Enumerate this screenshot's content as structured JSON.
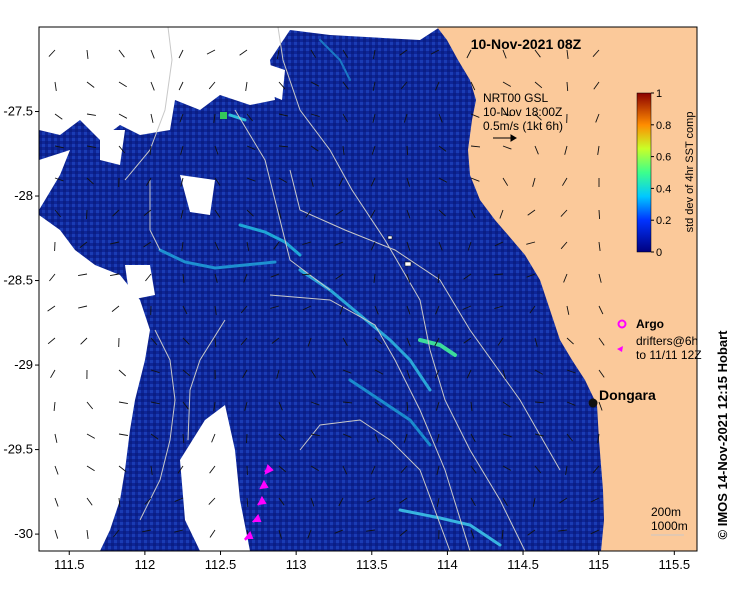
{
  "map": {
    "title": "10-Nov-2021 08Z",
    "model_label_lines": [
      "NRT00 GSL",
      "10-Nov 18:00Z",
      "0.5m/s (1kt 6h)"
    ],
    "colorbar": {
      "label": "std dev of 4hr SST comp",
      "ticks": [
        "0",
        "0.2",
        "0.4",
        "0.6",
        "0.8",
        "1"
      ],
      "range": [
        0,
        1
      ]
    },
    "legend": {
      "argo_label": "Argo",
      "drifters_line1": "drifters@6h",
      "drifters_line2": "to 11/11 12Z"
    },
    "place": {
      "name": "Dongara",
      "lon": 114.93,
      "lat": -29.26
    },
    "depth_labels": [
      "200m",
      "1000m"
    ],
    "credit": "© IMOS 14-Nov-2021 12:15 Hobart",
    "lon_ticks": [
      "111.5",
      "112",
      "112.5",
      "113",
      "113.5",
      "114",
      "114.5",
      "115",
      "115.5"
    ],
    "lat_ticks": [
      "-27.5",
      "-28",
      "-28.5",
      "-29",
      "-29.5",
      "-30"
    ],
    "lon_range": [
      111.3,
      115.65
    ],
    "lat_range": [
      -30.1,
      -27.0
    ],
    "colors": {
      "ocean": "#0f2a9a",
      "land": "#fbc99a",
      "no_data": "#ffffff",
      "argo": "#ff00ff",
      "drifter": "#ff00ff"
    }
  }
}
